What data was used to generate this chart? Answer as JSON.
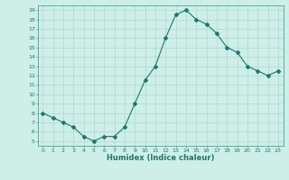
{
  "x": [
    0,
    1,
    2,
    3,
    4,
    5,
    6,
    7,
    8,
    9,
    10,
    11,
    12,
    13,
    14,
    15,
    16,
    17,
    18,
    19,
    20,
    21,
    22,
    23
  ],
  "y": [
    8,
    7.5,
    7,
    6.5,
    5.5,
    5,
    5.5,
    5.5,
    6.5,
    9,
    11.5,
    13,
    16,
    18.5,
    19,
    18,
    17.5,
    16.5,
    15,
    14.5,
    13,
    12.5,
    12,
    12.5
  ],
  "line_color": "#1a7a6e",
  "marker": "D",
  "marker_size": 2.0,
  "bg_color": "#ceeee8",
  "grid_color": "#b0d8d2",
  "xlabel": "Humidex (Indice chaleur)",
  "xlim": [
    -0.5,
    23.5
  ],
  "ylim": [
    4.5,
    19.5
  ],
  "yticks": [
    5,
    6,
    7,
    8,
    9,
    10,
    11,
    12,
    13,
    14,
    15,
    16,
    17,
    18,
    19
  ],
  "xticks": [
    0,
    1,
    2,
    3,
    4,
    5,
    6,
    7,
    8,
    9,
    10,
    11,
    12,
    13,
    14,
    15,
    16,
    17,
    18,
    19,
    20,
    21,
    22,
    23
  ]
}
